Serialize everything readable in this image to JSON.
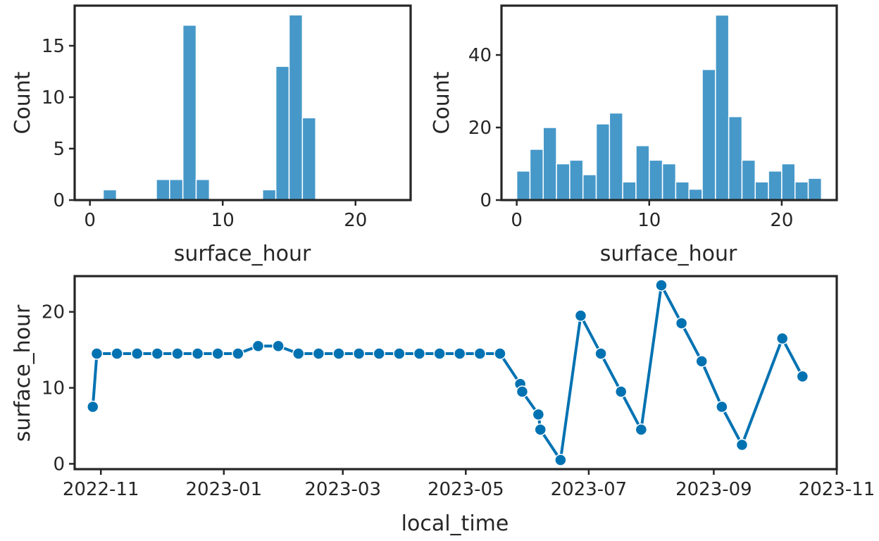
{
  "colors": {
    "hist": "#4698c9",
    "line": "#0072b2",
    "axes": "#262626",
    "bar_edge": "#ffffff"
  },
  "chart_data": [
    {
      "type": "bar",
      "subtype": "histogram",
      "xlabel": "surface_hour",
      "ylabel": "Count",
      "bin_width": 1,
      "x": [
        1,
        5,
        6,
        7,
        8,
        13,
        14,
        15,
        16
      ],
      "values": [
        1,
        2,
        2,
        17,
        2,
        1,
        13,
        18,
        8
      ],
      "xlim": [
        -1.15,
        24.15
      ],
      "ylim": [
        0,
        18.9
      ],
      "xticks": [
        0,
        10,
        20
      ],
      "yticks": [
        0,
        5,
        10,
        15
      ]
    },
    {
      "type": "bar",
      "subtype": "histogram",
      "xlabel": "surface_hour",
      "ylabel": "Count",
      "bin_width": 1,
      "x": [
        0,
        1,
        2,
        3,
        4,
        5,
        6,
        7,
        8,
        9,
        10,
        11,
        12,
        13,
        14,
        15,
        16,
        17,
        18,
        19,
        20,
        21,
        22
      ],
      "values": [
        8,
        14,
        20,
        10,
        11,
        7,
        21,
        24,
        5,
        15,
        11,
        10,
        5,
        3,
        36,
        51,
        23,
        11,
        5,
        8,
        10,
        5,
        6
      ],
      "xlim": [
        -1.15,
        24.15
      ],
      "ylim": [
        0,
        53.6
      ],
      "xticks": [
        0,
        10,
        20
      ],
      "yticks": [
        0,
        20,
        40
      ]
    },
    {
      "type": "line",
      "markers": true,
      "xlabel": "local_time",
      "ylabel": "surface_hour",
      "x": [
        "2022-10-28",
        "2022-10-30",
        "2022-11-09",
        "2022-11-19",
        "2022-11-29",
        "2022-12-09",
        "2022-12-19",
        "2022-12-29",
        "2023-01-08",
        "2023-01-18",
        "2023-01-28",
        "2023-02-07",
        "2023-02-17",
        "2023-02-27",
        "2023-03-09",
        "2023-03-19",
        "2023-03-29",
        "2023-04-08",
        "2023-04-18",
        "2023-04-28",
        "2023-05-08",
        "2023-05-18",
        "2023-05-28",
        "2023-05-29",
        "2023-06-06",
        "2023-06-07",
        "2023-06-17",
        "2023-06-27",
        "2023-07-07",
        "2023-07-17",
        "2023-07-27",
        "2023-08-06",
        "2023-08-16",
        "2023-08-26",
        "2023-09-05",
        "2023-09-15",
        "2023-10-05",
        "2023-10-15"
      ],
      "y": [
        7.5,
        14.5,
        14.5,
        14.5,
        14.5,
        14.5,
        14.5,
        14.5,
        14.5,
        15.5,
        15.5,
        14.5,
        14.5,
        14.5,
        14.5,
        14.5,
        14.5,
        14.5,
        14.5,
        14.5,
        14.5,
        14.5,
        10.5,
        9.5,
        6.5,
        4.5,
        0.5,
        19.5,
        14.5,
        9.5,
        4.5,
        23.5,
        18.5,
        13.5,
        7.5,
        2.5,
        16.5,
        11.5
      ],
      "xlim": [
        "2022-10-19",
        "2023-11-01"
      ],
      "ylim": [
        -0.7,
        24.7
      ],
      "xticks": [
        "2022-11",
        "2023-01",
        "2023-03",
        "2023-05",
        "2023-07",
        "2023-09",
        "2023-11"
      ],
      "yticks": [
        0,
        10,
        20
      ]
    }
  ]
}
